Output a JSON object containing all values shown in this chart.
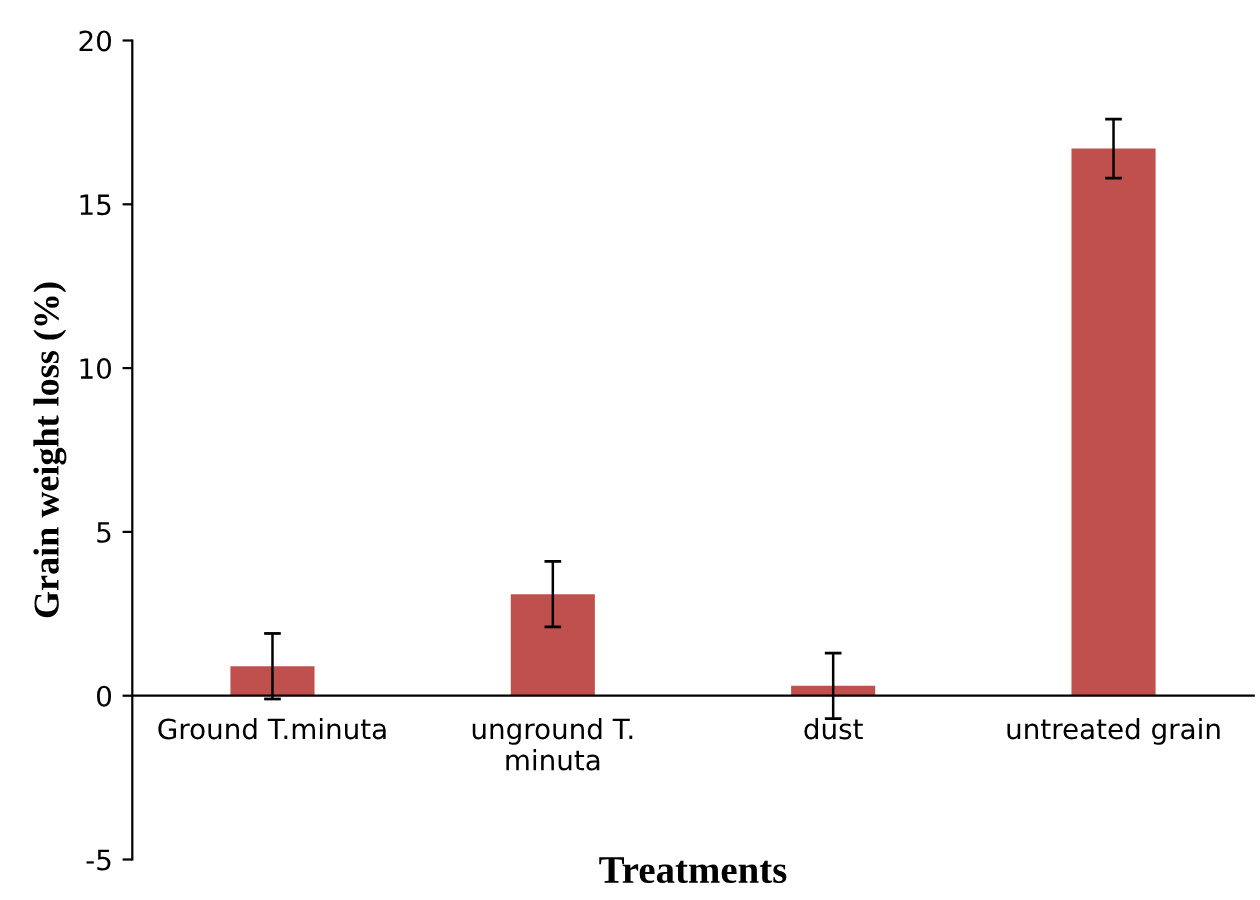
{
  "chart_data": {
    "type": "bar",
    "xlabel": "Treatments",
    "ylabel": "Grain weight loss (%)",
    "categories": [
      "Ground T.minuta",
      "unground T.\nminuta",
      "dust",
      "untreated grain"
    ],
    "values": [
      0.9,
      3.1,
      0.3,
      16.7
    ],
    "errors": [
      1.0,
      1.0,
      1.0,
      0.9
    ],
    "color": "#c0504d",
    "ylim": [
      -5,
      20
    ],
    "yticks": [
      -5,
      0,
      5,
      10,
      15,
      20
    ],
    "grid": false,
    "legend": false
  }
}
